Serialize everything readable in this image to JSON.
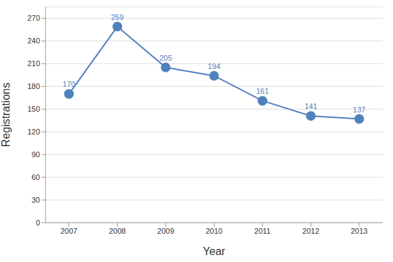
{
  "chart_data": {
    "type": "line",
    "x_label": "Year",
    "y_label": "Registrations",
    "categories": [
      "2007",
      "2008",
      "2009",
      "2010",
      "2011",
      "2012",
      "2013"
    ],
    "values": [
      170,
      259,
      205,
      194,
      161,
      141,
      137
    ],
    "color": "#4f81bd",
    "marker": "circle",
    "ylim": [
      0,
      285
    ],
    "yticks": [
      0,
      30,
      60,
      90,
      120,
      150,
      180,
      210,
      240,
      270
    ],
    "grid": true,
    "data_labels": true
  }
}
